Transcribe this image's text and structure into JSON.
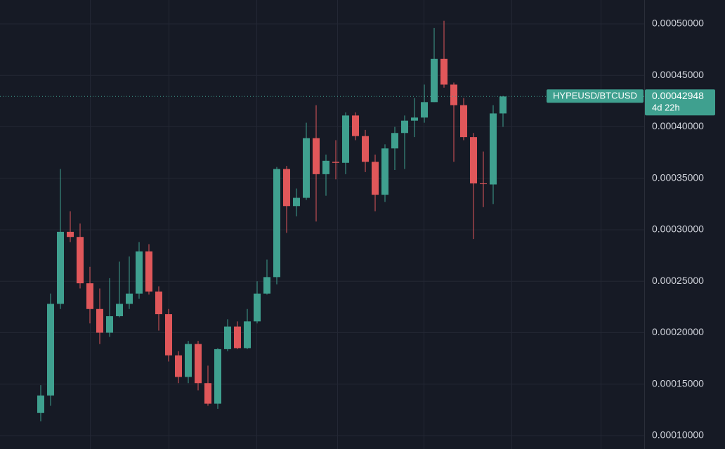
{
  "chart_data": {
    "type": "candlestick",
    "symbol": "HYPEUSD/BTCUSD",
    "last_price_label": "0.00042948",
    "countdown": "4d 22h",
    "up_color": "#3fa08f",
    "down_color": "#e0575a",
    "open": [
      0.000122,
      0.000139,
      0.000228,
      0.000298,
      0.000293,
      0.000248,
      0.000223,
      0.0002,
      0.000216,
      0.000228,
      0.000238,
      0.000279,
      0.00024,
      0.000218,
      0.000178,
      0.000157,
      0.000189,
      0.000151,
      0.000131,
      0.000184,
      0.000206,
      0.000185,
      0.000211,
      0.000238,
      0.000254,
      0.000359,
      0.000323,
      0.000331,
      0.000389,
      0.000354,
      0.000366,
      0.000365,
      0.000411,
      0.000391,
      0.000366,
      0.000334,
      0.000379,
      0.000394,
      0.000406,
      0.000409,
      0.000424,
      0.000466,
      0.000441,
      0.000421,
      0.00039,
      0.000345,
      0.000344,
      0.000413
    ],
    "high": [
      0.000149,
      0.000238,
      0.000359,
      0.000318,
      0.000306,
      0.000264,
      0.000243,
      0.000253,
      0.000269,
      0.000274,
      0.000288,
      0.000286,
      0.000245,
      0.000223,
      0.000182,
      0.000192,
      0.000192,
      0.000168,
      0.000185,
      0.000213,
      0.000211,
      0.000223,
      0.00025,
      0.000271,
      0.000361,
      0.000362,
      0.00034,
      0.000404,
      0.000421,
      0.000373,
      0.000387,
      0.000414,
      0.000414,
      0.000397,
      0.000373,
      0.000383,
      0.0004,
      0.000411,
      0.000428,
      0.000441,
      0.000496,
      0.000503,
      0.000443,
      0.000428,
      0.000394,
      0.000376,
      0.000421,
      0.00043
    ],
    "low": [
      0.000114,
      0.000129,
      0.000223,
      0.000288,
      0.000243,
      0.000209,
      0.000189,
      0.000196,
      0.000215,
      0.000223,
      0.000233,
      0.000237,
      0.000202,
      0.000172,
      0.000151,
      0.000151,
      0.000144,
      0.000129,
      0.000126,
      0.000182,
      0.000184,
      0.000184,
      0.000209,
      0.000237,
      0.000247,
      0.000297,
      0.000313,
      0.000329,
      0.000308,
      0.000333,
      0.000349,
      0.000354,
      0.000387,
      0.000356,
      0.000318,
      0.000327,
      0.000358,
      0.000359,
      0.00039,
      0.000404,
      0.000424,
      0.000438,
      0.000366,
      0.000387,
      0.000291,
      0.000322,
      0.000325,
      0.0004
    ],
    "close": [
      0.000139,
      0.000228,
      0.000298,
      0.000293,
      0.000248,
      0.000223,
      0.0002,
      0.000216,
      0.000228,
      0.000238,
      0.000279,
      0.00024,
      0.000218,
      0.000178,
      0.000157,
      0.000189,
      0.000151,
      0.000131,
      0.000184,
      0.000206,
      0.000185,
      0.000211,
      0.000238,
      0.000254,
      0.000359,
      0.000323,
      0.000331,
      0.000389,
      0.000354,
      0.000367,
      0.000365,
      0.000411,
      0.000391,
      0.000366,
      0.000334,
      0.000379,
      0.000394,
      0.000406,
      0.000409,
      0.000424,
      0.000466,
      0.000441,
      0.000421,
      0.00039,
      0.000345,
      0.0003445,
      0.000413,
      0.00042948
    ],
    "ylim": [
      8.7e-05,
      0.0005232
    ],
    "yticks": [
      {
        "value": 0.0001,
        "label": "0.00010000"
      },
      {
        "value": 0.00015,
        "label": "0.00015000"
      },
      {
        "value": 0.0002,
        "label": "0.00020000"
      },
      {
        "value": 0.00025,
        "label": "0.00025000"
      },
      {
        "value": 0.0003,
        "label": "0.00030000"
      },
      {
        "value": 0.00035,
        "label": "0.00035000"
      },
      {
        "value": 0.0004,
        "label": "0.00040000"
      },
      {
        "value": 0.00045,
        "label": "0.00045000"
      },
      {
        "value": 0.0005,
        "label": "0.00050000"
      }
    ],
    "grid": true
  }
}
